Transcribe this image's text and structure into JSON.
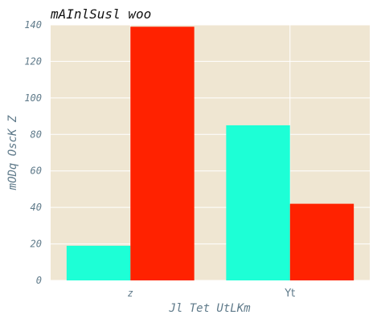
{
  "chart_data": {
    "type": "bar",
    "title": "mAInlSusl woo",
    "xlabel": "Jl Tet UtLKm",
    "ylabel": "mODq OscK Z",
    "categories": [
      "z",
      "Yt"
    ],
    "series": [
      {
        "values": [
          19,
          85
        ],
        "color": "#1dffd6"
      },
      {
        "values": [
          139,
          42
        ],
        "color": "#ff2200"
      }
    ],
    "ylim": [
      0,
      140
    ],
    "yticks": [
      "0",
      "20",
      "40",
      "60",
      "80",
      "100",
      "120",
      "140"
    ],
    "grid": true,
    "legend": "none",
    "background_color": "#efe6d2",
    "grid_color": "#ffffff"
  }
}
